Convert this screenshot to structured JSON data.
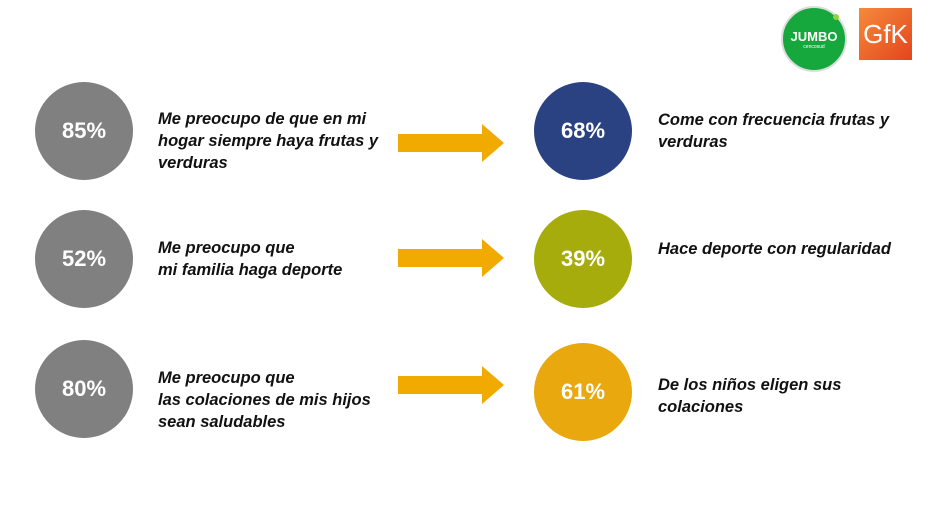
{
  "logos": {
    "jumbo": "JUMBO",
    "jumbo_sub": "cencosud",
    "gfk": "GfK"
  },
  "colors": {
    "gray": "#808080",
    "navy": "#2b4282",
    "olive": "#a6ac0c",
    "orange": "#e8a80e",
    "arrow": "#f0aa00"
  },
  "rows": [
    {
      "left_value": "85%",
      "left_text": "Me preocupo de que en mi\nhogar siempre haya frutas y\nverduras",
      "right_value": "68%",
      "right_text": "Come con frecuencia frutas y\nverduras"
    },
    {
      "left_value": "52%",
      "left_text": "Me preocupo que\nmi familia haga deporte",
      "right_value": "39%",
      "right_text": "Hace deporte con regularidad"
    },
    {
      "left_value": "80%",
      "left_text": "Me preocupo que\nlas colaciones de mis hijos\nsean saludables",
      "right_value": "61%",
      "right_text": "De los niños eligen sus\ncolaciones"
    }
  ]
}
